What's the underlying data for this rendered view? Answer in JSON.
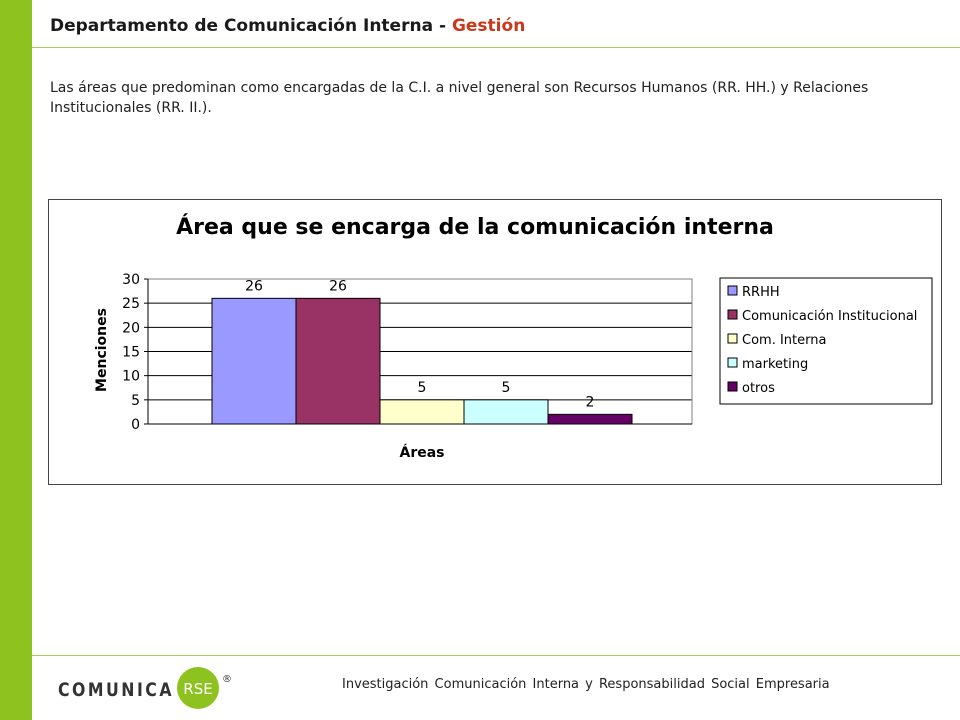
{
  "header": {
    "title_main": "Departamento de Comunicación Interna -",
    "title_accent": "Gestión"
  },
  "intro": "Las áreas que predominan como encargadas de la C.I. a nivel general son Recursos Humanos (RR. HH.) y Relaciones Institucionales (RR. II.).",
  "chart_data": {
    "type": "bar",
    "title": "Área que se encarga de la comunicación interna",
    "xlabel": "Áreas",
    "ylabel": "Menciones",
    "ylim": [
      0,
      30
    ],
    "yticks": [
      0,
      5,
      10,
      15,
      20,
      25,
      30
    ],
    "grid": true,
    "legend_position": "right",
    "series": [
      {
        "name": "RRHH",
        "value": 26,
        "color": "#9999ff"
      },
      {
        "name": "Comunicación Institucional",
        "value": 26,
        "color": "#993366"
      },
      {
        "name": "Com. Interna",
        "value": 5,
        "color": "#ffffcc"
      },
      {
        "name": "marketing",
        "value": 5,
        "color": "#ccffff"
      },
      {
        "name": "otros",
        "value": 2,
        "color": "#660066"
      }
    ]
  },
  "footer": {
    "text": "Investigación Comunicación Interna y Responsabilidad Social Empresaria",
    "logo_text": "COMUNICA",
    "logo_badge": "RSE",
    "logo_mark": "®",
    "accent_color": "#8dc21f"
  }
}
